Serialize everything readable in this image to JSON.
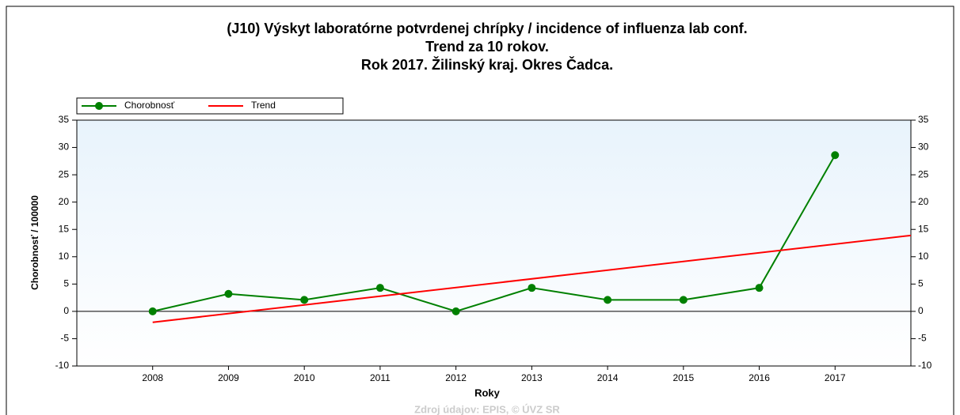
{
  "chart_data": {
    "type": "line",
    "title": [
      "(J10) Výskyt laboratórne potvrdenej chrípky / incidence of influenza lab conf.",
      "Trend za 10 rokov.",
      "Rok 2017. Žilinský kraj. Okres Čadca."
    ],
    "x": [
      2008,
      2009,
      2010,
      2011,
      2012,
      2013,
      2014,
      2015,
      2016,
      2017
    ],
    "series": [
      {
        "name": "Chorobnosť",
        "color": "#008000",
        "values": [
          0,
          3.2,
          2.1,
          4.3,
          0,
          4.3,
          2.1,
          2.1,
          4.3,
          28.6
        ]
      },
      {
        "name": "Trend",
        "color": "#ff0000",
        "x": [
          2008,
          2018
        ],
        "values": [
          -2.0,
          13.9
        ]
      }
    ],
    "xlim": [
      2007,
      2018
    ],
    "xticks": [
      2008,
      2009,
      2010,
      2011,
      2012,
      2013,
      2014,
      2015,
      2016,
      2017
    ],
    "ylim": [
      -10,
      35
    ],
    "yticks": [
      -10,
      -5,
      0,
      5,
      10,
      15,
      20,
      25,
      30,
      35
    ],
    "y2lim": [
      -10,
      35
    ],
    "y2ticks": [
      -10,
      -5,
      0,
      5,
      10,
      15,
      20,
      25,
      30,
      35
    ],
    "xlabel": "Roky",
    "ylabel": "Chorobnosť / 100000",
    "source": "Zdroj údajov: EPIS, © ÚVZ SR",
    "legend": "top-left"
  }
}
